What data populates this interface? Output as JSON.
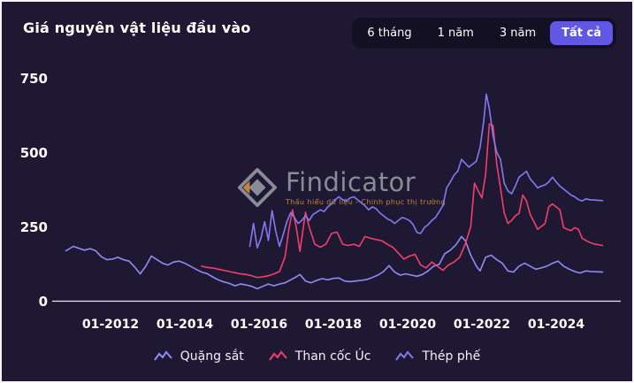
{
  "header": {
    "title": "Giá nguyên vật liệu đầu vào"
  },
  "toolbar": {
    "ranges": [
      "6 tháng",
      "1 năm",
      "3 năm",
      "Tất cả"
    ],
    "active_range": "Tất cả"
  },
  "watermark": {
    "brand": "Findicator",
    "tagline": "Thấu hiểu dữ liệu - Chinh phục thị trường"
  },
  "colors": {
    "background": "#1e1833",
    "toolbar_panel": "#131024",
    "accent_active": "#6257e5",
    "axis_line": "#e8e8f0",
    "iron_ore": "#8f8cf6",
    "coking_coal": "#f23f6b",
    "scrap_steel": "#8379f2"
  },
  "chart_data": {
    "type": "line",
    "title": "Giá nguyên vật liệu đầu vào",
    "xlabel": "",
    "ylabel": "",
    "xlim": [
      2010.7,
      2025.4
    ],
    "ylim": [
      0,
      750
    ],
    "y_ticks": [
      0,
      250,
      500,
      750
    ],
    "x_tick_years": [
      2012,
      2014,
      2016,
      2018,
      2020,
      2022,
      2024
    ],
    "x_tick_labels": [
      "01-2012",
      "01-2014",
      "01-2016",
      "01-2018",
      "01-2020",
      "01-2022",
      "01-2024"
    ],
    "grid": false,
    "legend_position": "bottom",
    "series": [
      {
        "name": "Quặng sắt",
        "color": "#8f8cf6",
        "points": [
          [
            2010.8,
            170
          ],
          [
            2011.0,
            185
          ],
          [
            2011.15,
            178
          ],
          [
            2011.3,
            172
          ],
          [
            2011.45,
            177
          ],
          [
            2011.6,
            170
          ],
          [
            2011.75,
            150
          ],
          [
            2011.9,
            140
          ],
          [
            2012.05,
            142
          ],
          [
            2012.2,
            148
          ],
          [
            2012.35,
            140
          ],
          [
            2012.5,
            135
          ],
          [
            2012.65,
            115
          ],
          [
            2012.8,
            92
          ],
          [
            2012.95,
            118
          ],
          [
            2013.1,
            152
          ],
          [
            2013.25,
            140
          ],
          [
            2013.4,
            128
          ],
          [
            2013.55,
            122
          ],
          [
            2013.7,
            132
          ],
          [
            2013.85,
            135
          ],
          [
            2014.0,
            128
          ],
          [
            2014.15,
            118
          ],
          [
            2014.3,
            108
          ],
          [
            2014.45,
            98
          ],
          [
            2014.6,
            93
          ],
          [
            2014.75,
            82
          ],
          [
            2014.9,
            72
          ],
          [
            2015.05,
            65
          ],
          [
            2015.2,
            60
          ],
          [
            2015.35,
            52
          ],
          [
            2015.5,
            58
          ],
          [
            2015.65,
            55
          ],
          [
            2015.8,
            50
          ],
          [
            2015.95,
            42
          ],
          [
            2016.1,
            50
          ],
          [
            2016.25,
            58
          ],
          [
            2016.4,
            52
          ],
          [
            2016.55,
            58
          ],
          [
            2016.7,
            62
          ],
          [
            2016.85,
            72
          ],
          [
            2017.0,
            82
          ],
          [
            2017.1,
            90
          ],
          [
            2017.25,
            68
          ],
          [
            2017.4,
            62
          ],
          [
            2017.55,
            70
          ],
          [
            2017.7,
            76
          ],
          [
            2017.85,
            72
          ],
          [
            2018.0,
            77
          ],
          [
            2018.15,
            78
          ],
          [
            2018.3,
            68
          ],
          [
            2018.45,
            66
          ],
          [
            2018.6,
            68
          ],
          [
            2018.75,
            70
          ],
          [
            2018.9,
            73
          ],
          [
            2019.05,
            80
          ],
          [
            2019.2,
            88
          ],
          [
            2019.35,
            100
          ],
          [
            2019.5,
            120
          ],
          [
            2019.65,
            98
          ],
          [
            2019.8,
            88
          ],
          [
            2019.95,
            92
          ],
          [
            2020.1,
            88
          ],
          [
            2020.25,
            84
          ],
          [
            2020.4,
            90
          ],
          [
            2020.55,
            102
          ],
          [
            2020.7,
            118
          ],
          [
            2020.85,
            124
          ],
          [
            2021.0,
            160
          ],
          [
            2021.15,
            172
          ],
          [
            2021.3,
            190
          ],
          [
            2021.45,
            218
          ],
          [
            2021.55,
            205
          ],
          [
            2021.7,
            155
          ],
          [
            2021.85,
            118
          ],
          [
            2021.95,
            102
          ],
          [
            2022.1,
            148
          ],
          [
            2022.25,
            155
          ],
          [
            2022.4,
            140
          ],
          [
            2022.55,
            128
          ],
          [
            2022.7,
            102
          ],
          [
            2022.85,
            98
          ],
          [
            2023.0,
            118
          ],
          [
            2023.15,
            128
          ],
          [
            2023.3,
            118
          ],
          [
            2023.45,
            108
          ],
          [
            2023.6,
            112
          ],
          [
            2023.75,
            118
          ],
          [
            2023.9,
            128
          ],
          [
            2024.05,
            135
          ],
          [
            2024.2,
            118
          ],
          [
            2024.35,
            108
          ],
          [
            2024.5,
            100
          ],
          [
            2024.65,
            95
          ],
          [
            2024.8,
            102
          ],
          [
            2024.95,
            100
          ],
          [
            2025.1,
            99
          ],
          [
            2025.25,
            98
          ]
        ]
      },
      {
        "name": "Than cốc Úc",
        "color": "#f23f6b",
        "points": [
          [
            2014.45,
            118
          ],
          [
            2014.6,
            114
          ],
          [
            2014.75,
            112
          ],
          [
            2014.9,
            108
          ],
          [
            2015.05,
            104
          ],
          [
            2015.2,
            100
          ],
          [
            2015.35,
            96
          ],
          [
            2015.5,
            92
          ],
          [
            2015.65,
            90
          ],
          [
            2015.8,
            86
          ],
          [
            2015.95,
            80
          ],
          [
            2016.1,
            82
          ],
          [
            2016.25,
            86
          ],
          [
            2016.4,
            92
          ],
          [
            2016.55,
            100
          ],
          [
            2016.7,
            150
          ],
          [
            2016.8,
            240
          ],
          [
            2016.9,
            308
          ],
          [
            2017.0,
            250
          ],
          [
            2017.1,
            168
          ],
          [
            2017.25,
            300
          ],
          [
            2017.35,
            250
          ],
          [
            2017.5,
            192
          ],
          [
            2017.65,
            182
          ],
          [
            2017.8,
            192
          ],
          [
            2017.95,
            228
          ],
          [
            2018.1,
            233
          ],
          [
            2018.25,
            192
          ],
          [
            2018.4,
            188
          ],
          [
            2018.55,
            192
          ],
          [
            2018.7,
            185
          ],
          [
            2018.85,
            218
          ],
          [
            2019.0,
            212
          ],
          [
            2019.15,
            208
          ],
          [
            2019.3,
            204
          ],
          [
            2019.45,
            192
          ],
          [
            2019.6,
            182
          ],
          [
            2019.75,
            162
          ],
          [
            2019.9,
            142
          ],
          [
            2020.05,
            152
          ],
          [
            2020.2,
            158
          ],
          [
            2020.35,
            122
          ],
          [
            2020.5,
            112
          ],
          [
            2020.65,
            132
          ],
          [
            2020.8,
            118
          ],
          [
            2020.95,
            104
          ],
          [
            2021.1,
            122
          ],
          [
            2021.25,
            132
          ],
          [
            2021.4,
            148
          ],
          [
            2021.55,
            192
          ],
          [
            2021.7,
            252
          ],
          [
            2021.8,
            398
          ],
          [
            2021.9,
            372
          ],
          [
            2022.0,
            348
          ],
          [
            2022.1,
            428
          ],
          [
            2022.2,
            598
          ],
          [
            2022.3,
            592
          ],
          [
            2022.4,
            462
          ],
          [
            2022.5,
            382
          ],
          [
            2022.6,
            298
          ],
          [
            2022.7,
            262
          ],
          [
            2022.8,
            272
          ],
          [
            2022.9,
            288
          ],
          [
            2023.0,
            296
          ],
          [
            2023.1,
            358
          ],
          [
            2023.2,
            338
          ],
          [
            2023.3,
            292
          ],
          [
            2023.4,
            268
          ],
          [
            2023.5,
            242
          ],
          [
            2023.6,
            252
          ],
          [
            2023.7,
            262
          ],
          [
            2023.8,
            318
          ],
          [
            2023.9,
            328
          ],
          [
            2024.0,
            318
          ],
          [
            2024.1,
            308
          ],
          [
            2024.2,
            248
          ],
          [
            2024.3,
            242
          ],
          [
            2024.4,
            238
          ],
          [
            2024.5,
            248
          ],
          [
            2024.6,
            242
          ],
          [
            2024.7,
            212
          ],
          [
            2024.8,
            205
          ],
          [
            2024.9,
            198
          ],
          [
            2025.05,
            192
          ],
          [
            2025.25,
            188
          ]
        ]
      },
      {
        "name": "Thép phế",
        "color": "#8379f2",
        "points": [
          [
            2015.75,
            185
          ],
          [
            2015.85,
            262
          ],
          [
            2015.95,
            180
          ],
          [
            2016.05,
            212
          ],
          [
            2016.15,
            268
          ],
          [
            2016.25,
            205
          ],
          [
            2016.35,
            305
          ],
          [
            2016.45,
            235
          ],
          [
            2016.55,
            185
          ],
          [
            2016.65,
            225
          ],
          [
            2016.75,
            268
          ],
          [
            2016.85,
            298
          ],
          [
            2016.95,
            282
          ],
          [
            2017.05,
            262
          ],
          [
            2017.15,
            272
          ],
          [
            2017.25,
            288
          ],
          [
            2017.35,
            272
          ],
          [
            2017.45,
            292
          ],
          [
            2017.55,
            300
          ],
          [
            2017.65,
            308
          ],
          [
            2017.75,
            302
          ],
          [
            2017.85,
            318
          ],
          [
            2017.95,
            328
          ],
          [
            2018.05,
            342
          ],
          [
            2018.15,
            352
          ],
          [
            2018.25,
            342
          ],
          [
            2018.35,
            338
          ],
          [
            2018.45,
            348
          ],
          [
            2018.55,
            352
          ],
          [
            2018.65,
            342
          ],
          [
            2018.75,
            332
          ],
          [
            2018.85,
            322
          ],
          [
            2018.95,
            308
          ],
          [
            2019.05,
            318
          ],
          [
            2019.15,
            312
          ],
          [
            2019.25,
            298
          ],
          [
            2019.35,
            288
          ],
          [
            2019.45,
            278
          ],
          [
            2019.55,
            272
          ],
          [
            2019.65,
            262
          ],
          [
            2019.75,
            272
          ],
          [
            2019.85,
            282
          ],
          [
            2019.95,
            278
          ],
          [
            2020.05,
            272
          ],
          [
            2020.15,
            258
          ],
          [
            2020.25,
            232
          ],
          [
            2020.35,
            228
          ],
          [
            2020.45,
            248
          ],
          [
            2020.55,
            258
          ],
          [
            2020.65,
            272
          ],
          [
            2020.75,
            282
          ],
          [
            2020.85,
            302
          ],
          [
            2020.95,
            322
          ],
          [
            2021.05,
            382
          ],
          [
            2021.15,
            402
          ],
          [
            2021.25,
            425
          ],
          [
            2021.35,
            438
          ],
          [
            2021.45,
            478
          ],
          [
            2021.55,
            465
          ],
          [
            2021.65,
            452
          ],
          [
            2021.75,
            462
          ],
          [
            2021.85,
            472
          ],
          [
            2021.95,
            518
          ],
          [
            2022.05,
            608
          ],
          [
            2022.12,
            698
          ],
          [
            2022.2,
            648
          ],
          [
            2022.3,
            558
          ],
          [
            2022.4,
            502
          ],
          [
            2022.5,
            478
          ],
          [
            2022.6,
            398
          ],
          [
            2022.7,
            372
          ],
          [
            2022.8,
            362
          ],
          [
            2022.9,
            388
          ],
          [
            2023.0,
            418
          ],
          [
            2023.1,
            428
          ],
          [
            2023.2,
            438
          ],
          [
            2023.3,
            412
          ],
          [
            2023.4,
            398
          ],
          [
            2023.5,
            382
          ],
          [
            2023.6,
            388
          ],
          [
            2023.7,
            392
          ],
          [
            2023.8,
            402
          ],
          [
            2023.9,
            418
          ],
          [
            2024.0,
            402
          ],
          [
            2024.1,
            388
          ],
          [
            2024.2,
            378
          ],
          [
            2024.3,
            368
          ],
          [
            2024.4,
            358
          ],
          [
            2024.5,
            352
          ],
          [
            2024.6,
            342
          ],
          [
            2024.7,
            338
          ],
          [
            2024.8,
            345
          ],
          [
            2024.9,
            342
          ],
          [
            2025.05,
            341
          ],
          [
            2025.25,
            339
          ]
        ]
      }
    ]
  }
}
